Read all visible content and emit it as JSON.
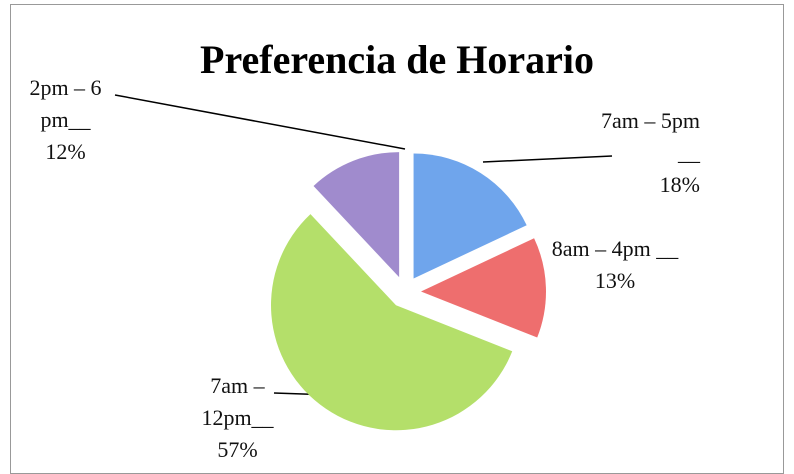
{
  "chart_data": {
    "type": "pie",
    "title": "Preferencia de Horario",
    "categories": [
      "7am – 5pm __",
      "8am – 4pm __",
      "7am – 12pm__",
      "2pm – 6 pm__"
    ],
    "values": [
      18,
      13,
      57,
      12
    ],
    "value_labels": [
      "18%",
      "13%",
      "57%",
      "12%"
    ],
    "colors": [
      "#6fa5ec",
      "#ee6e6e",
      "#b4df6a",
      "#a08bcd"
    ]
  }
}
